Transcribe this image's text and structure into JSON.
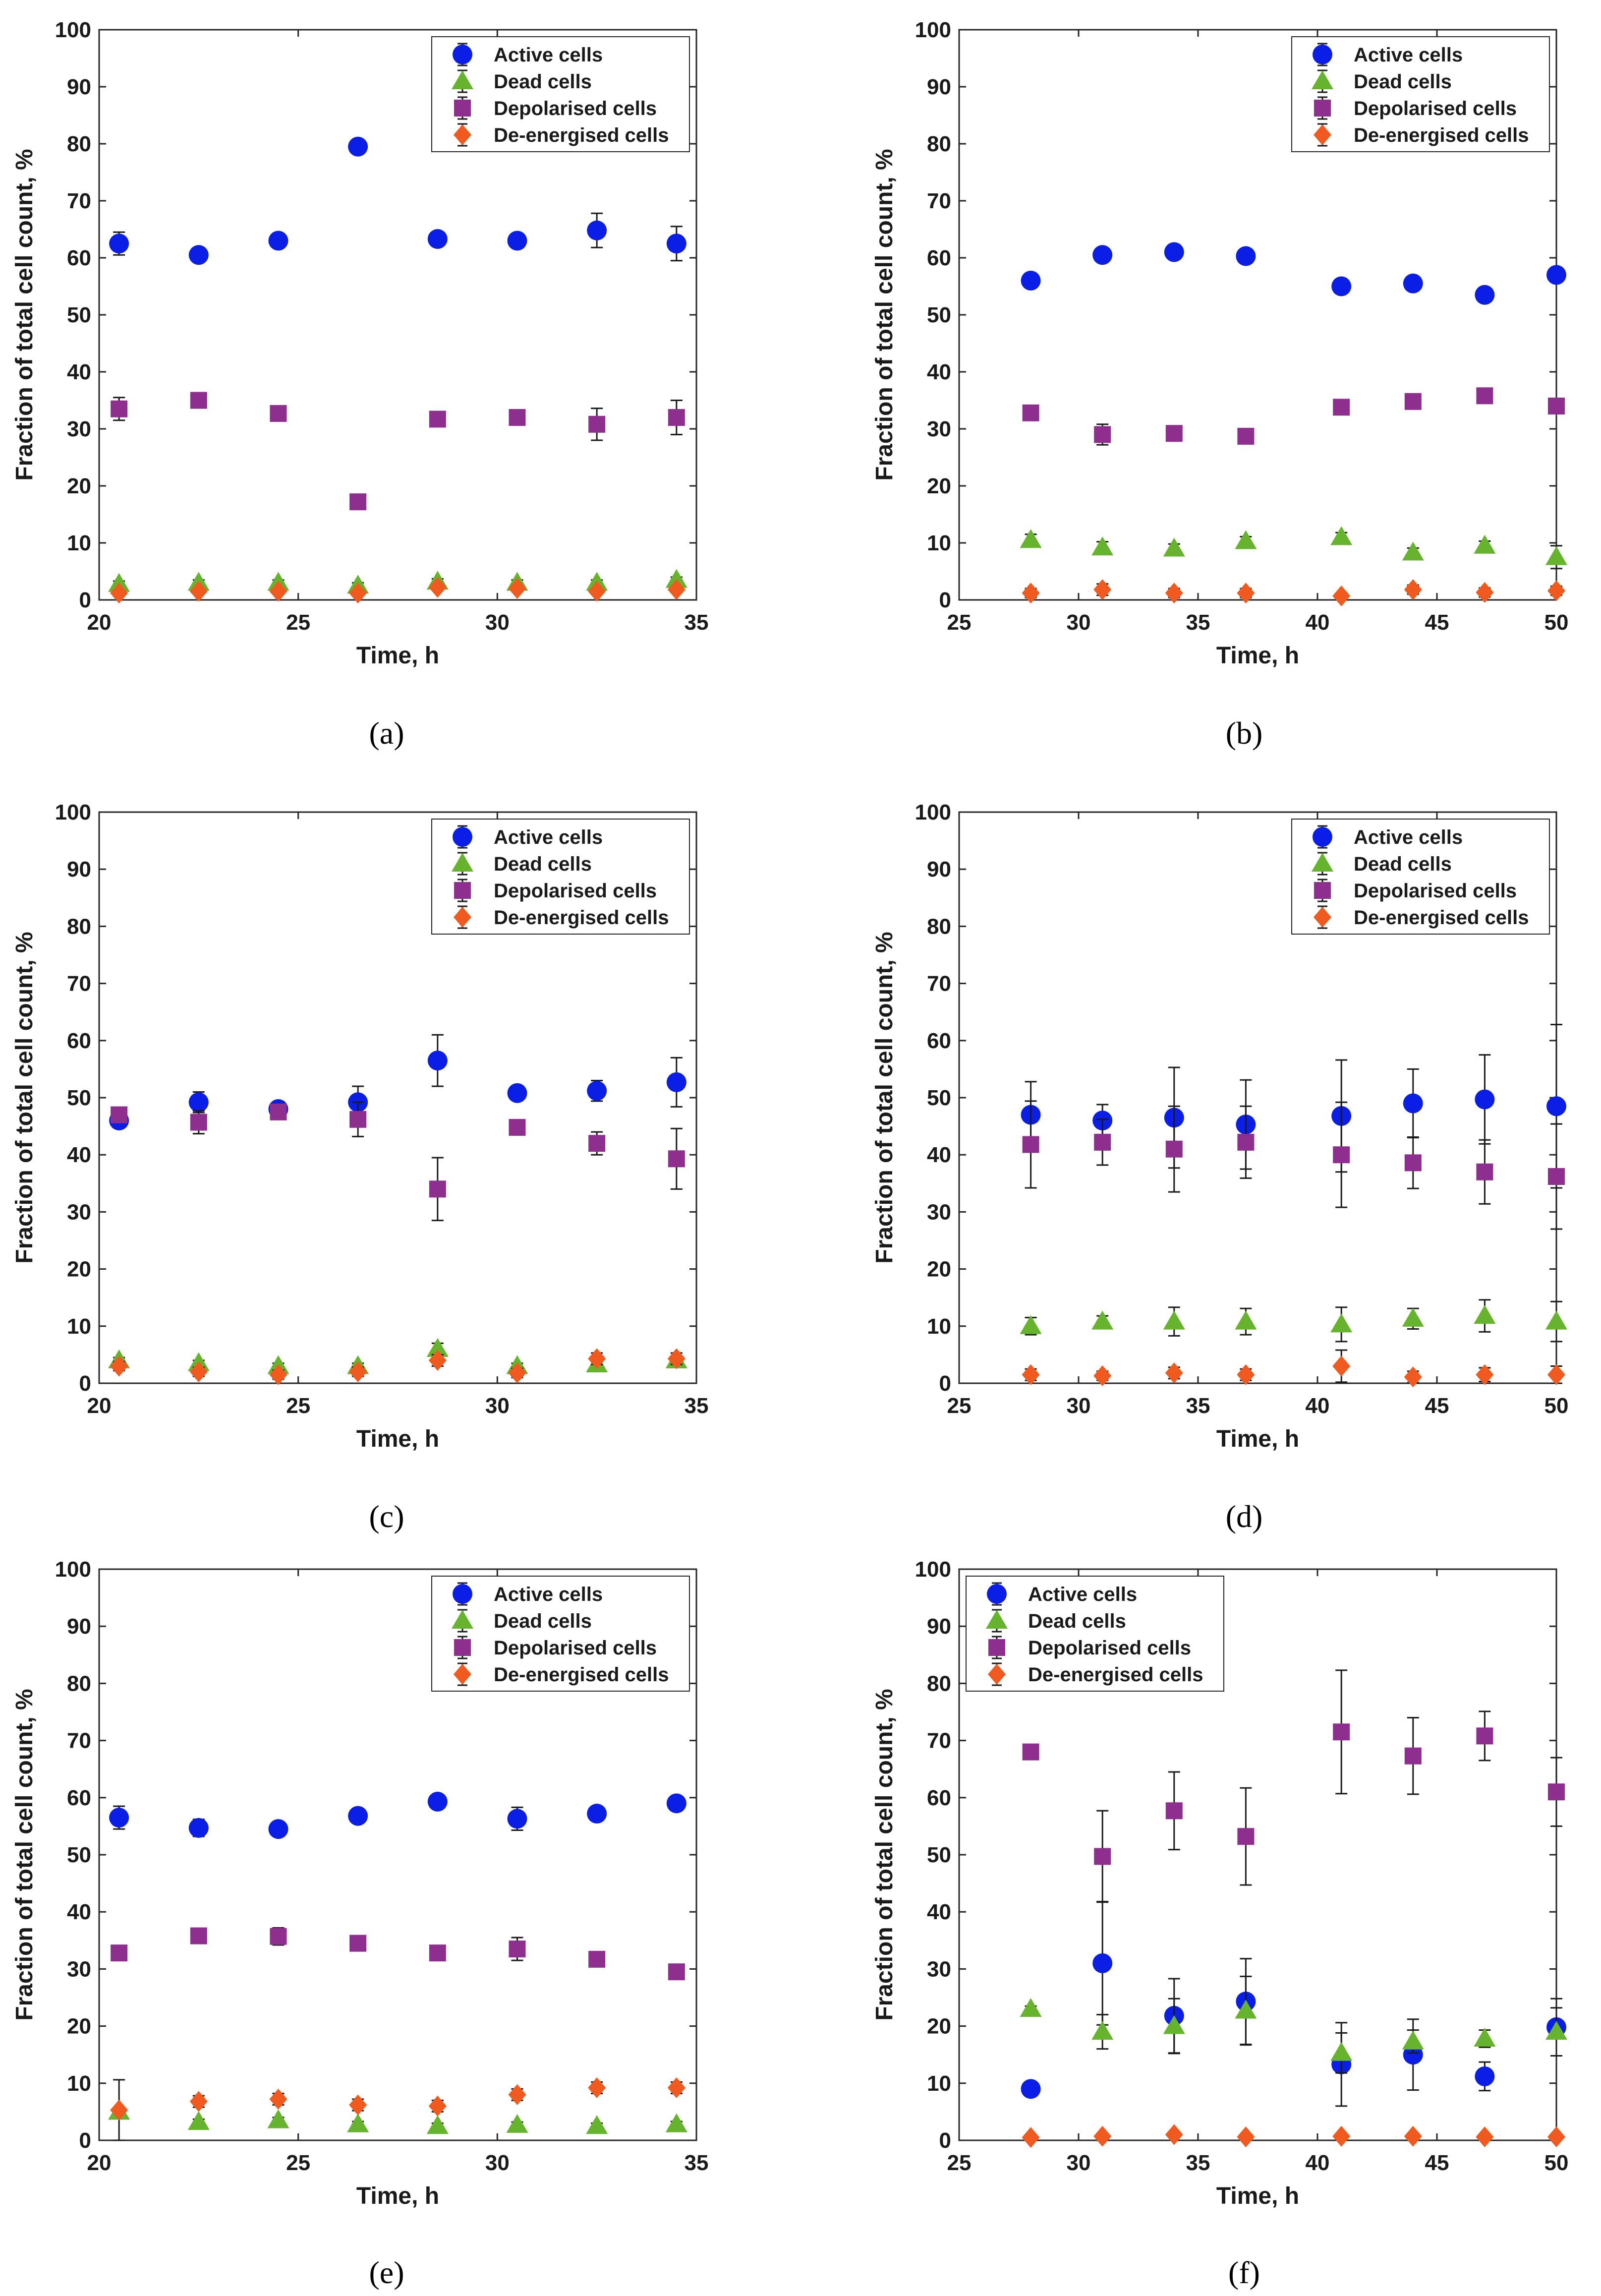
{
  "figure": {
    "captions": [
      "(a)",
      "(b)",
      "(c)",
      "(d)",
      "(e)",
      "(f)"
    ]
  },
  "colors": {
    "active": "#0a1ee6",
    "dead": "#66b32e",
    "depolarised": "#8e2f8f",
    "deenergised": "#f05a1e"
  },
  "chart_data": [
    {
      "type": "scatter",
      "caption": "(a)",
      "xlabel": "Time, h",
      "ylabel": "Fraction of total cell count, %",
      "xlim": [
        20,
        35
      ],
      "ylim": [
        0,
        100
      ],
      "xticks": [
        20,
        25,
        30,
        35
      ],
      "yticks": [
        0,
        10,
        20,
        30,
        40,
        50,
        60,
        70,
        80,
        90,
        100
      ],
      "legend_position": "top-right",
      "x": [
        20.5,
        22.5,
        24.5,
        26.5,
        28.5,
        30.5,
        32.5,
        34.5
      ],
      "series": [
        {
          "name": "Active cells",
          "marker": "circle",
          "values": [
            62.5,
            60.5,
            63,
            79.5,
            63.3,
            63,
            64.8,
            62.5
          ],
          "errors": [
            2,
            0.5,
            0.5,
            0.6,
            1,
            0.6,
            3,
            3
          ]
        },
        {
          "name": "Dead cells",
          "marker": "triangle",
          "values": [
            2.8,
            3,
            3,
            2.5,
            3.2,
            3,
            3,
            3.5
          ],
          "errors": [
            0.5,
            0.5,
            0.5,
            0.5,
            0.5,
            0.5,
            0.5,
            0.5
          ]
        },
        {
          "name": "Depolarised cells",
          "marker": "square",
          "values": [
            33.5,
            35,
            32.7,
            17.2,
            31.7,
            32,
            30.8,
            32
          ],
          "errors": [
            2,
            0.8,
            0.8,
            0.8,
            1,
            0.8,
            2.8,
            3
          ]
        },
        {
          "name": "De-energised cells",
          "marker": "diamond",
          "values": [
            1.2,
            1.5,
            1.5,
            1.2,
            2.2,
            2,
            1.5,
            1.8
          ],
          "errors": [
            0.5,
            0.5,
            0.5,
            0.5,
            0.5,
            0.5,
            0.5,
            0.5
          ]
        }
      ]
    },
    {
      "type": "scatter",
      "caption": "(b)",
      "xlabel": "Time, h",
      "ylabel": "Fraction of total cell count, %",
      "xlim": [
        25,
        50
      ],
      "ylim": [
        0,
        100
      ],
      "xticks": [
        25,
        30,
        35,
        40,
        45,
        50
      ],
      "yticks": [
        0,
        10,
        20,
        30,
        40,
        50,
        60,
        70,
        80,
        90,
        100
      ],
      "legend_position": "top-right",
      "x": [
        28,
        31,
        34,
        37,
        41,
        44,
        47,
        50
      ],
      "series": [
        {
          "name": "Active cells",
          "marker": "circle",
          "values": [
            56,
            60.5,
            61,
            60.3,
            55,
            55.5,
            53.5,
            57
          ],
          "errors": [
            0.5,
            0.5,
            0.5,
            0.5,
            0.5,
            0.5,
            0.5,
            0.5
          ]
        },
        {
          "name": "Dead cells",
          "marker": "triangle",
          "values": [
            10.5,
            9.2,
            9,
            10.3,
            11,
            8.3,
            9.5,
            7.5
          ],
          "errors": [
            1,
            1,
            0.8,
            0.8,
            0.8,
            0.8,
            0.8,
            2
          ]
        },
        {
          "name": "Depolarised cells",
          "marker": "square",
          "values": [
            32.8,
            29,
            29.2,
            28.7,
            33.8,
            34.8,
            35.8,
            34
          ],
          "errors": [
            0.8,
            1.8,
            0.8,
            0.8,
            0.8,
            0.8,
            0.8,
            0.8
          ]
        },
        {
          "name": "De-energised cells",
          "marker": "diamond",
          "values": [
            1.2,
            1.8,
            1.2,
            1.2,
            0.7,
            1.8,
            1.3,
            1.6
          ],
          "errors": [
            0.8,
            1,
            0.8,
            0.8,
            0.5,
            0.8,
            0.8,
            0.8
          ]
        }
      ]
    },
    {
      "type": "scatter",
      "caption": "(c)",
      "xlabel": "Time, h",
      "ylabel": "Fraction of total cell count, %",
      "xlim": [
        20,
        35
      ],
      "ylim": [
        0,
        100
      ],
      "xticks": [
        20,
        25,
        30,
        35
      ],
      "yticks": [
        0,
        10,
        20,
        30,
        40,
        50,
        60,
        70,
        80,
        90,
        100
      ],
      "legend_position": "top-right",
      "x": [
        20.5,
        22.5,
        24.5,
        26.5,
        28.5,
        30.5,
        32.5,
        34.5
      ],
      "series": [
        {
          "name": "Active cells",
          "marker": "circle",
          "values": [
            46,
            49.2,
            48,
            49.2,
            56.5,
            50.8,
            51.2,
            52.7
          ],
          "errors": [
            1,
            1.8,
            0.8,
            2.8,
            4.5,
            0.8,
            1.8,
            4.3
          ]
        },
        {
          "name": "Dead cells",
          "marker": "triangle",
          "values": [
            4,
            3.5,
            3,
            3,
            6,
            3,
            3.3,
            4
          ],
          "errors": [
            0.5,
            0.5,
            0.5,
            0.5,
            1,
            0.5,
            0.5,
            0.5
          ]
        },
        {
          "name": "Depolarised cells",
          "marker": "square",
          "values": [
            47,
            45.7,
            47.5,
            46.2,
            34,
            44.8,
            42,
            39.3
          ],
          "errors": [
            0.8,
            2,
            0.8,
            3,
            5.5,
            0.8,
            2,
            5.3
          ]
        },
        {
          "name": "De-energised cells",
          "marker": "diamond",
          "values": [
            3,
            2,
            1.5,
            2,
            4,
            1.8,
            4.3,
            4.3
          ],
          "errors": [
            0.8,
            0.8,
            0.8,
            0.8,
            1,
            0.8,
            1,
            1
          ]
        }
      ]
    },
    {
      "type": "scatter",
      "caption": "(d)",
      "xlabel": "Time, h",
      "ylabel": "Fraction of total cell count, %",
      "xlim": [
        25,
        50
      ],
      "ylim": [
        0,
        100
      ],
      "xticks": [
        25,
        30,
        35,
        40,
        45,
        50
      ],
      "yticks": [
        0,
        10,
        20,
        30,
        40,
        50,
        60,
        70,
        80,
        90,
        100
      ],
      "legend_position": "top-right",
      "x": [
        28,
        31,
        34,
        37,
        41,
        44,
        47,
        50
      ],
      "series": [
        {
          "name": "Active cells",
          "marker": "circle",
          "values": [
            47,
            46,
            46.5,
            45.3,
            46.8,
            49,
            49.7,
            48.5
          ],
          "errors": [
            5.8,
            2.8,
            8.8,
            7.8,
            9.8,
            6,
            7.8,
            14.3
          ]
        },
        {
          "name": "Dead cells",
          "marker": "triangle",
          "values": [
            10,
            10.8,
            10.8,
            10.8,
            10.3,
            11.3,
            11.8,
            10.8
          ],
          "errors": [
            1.5,
            1,
            2.5,
            2.3,
            3,
            1.8,
            2.8,
            3.5
          ]
        },
        {
          "name": "Depolarised cells",
          "marker": "square",
          "values": [
            41.8,
            42.2,
            41,
            42.2,
            40,
            38.6,
            37,
            36.2
          ],
          "errors": [
            7.6,
            4,
            7.5,
            6.3,
            9.2,
            4.5,
            5.6,
            9.2
          ]
        },
        {
          "name": "De-energised cells",
          "marker": "diamond",
          "values": [
            1.5,
            1.3,
            1.8,
            1.5,
            3,
            1.1,
            1.5,
            1.5
          ],
          "errors": [
            1,
            0.8,
            1,
            1,
            2.8,
            1,
            1.2,
            1.5
          ]
        }
      ]
    },
    {
      "type": "scatter",
      "caption": "(e)",
      "xlabel": "Time, h",
      "ylabel": "Fraction of total cell count, %",
      "xlim": [
        20,
        35
      ],
      "ylim": [
        0,
        100
      ],
      "xticks": [
        20,
        25,
        30,
        35
      ],
      "yticks": [
        0,
        10,
        20,
        30,
        40,
        50,
        60,
        70,
        80,
        90,
        100
      ],
      "legend_position": "top-right",
      "x": [
        20.5,
        22.5,
        24.5,
        26.5,
        28.5,
        30.5,
        32.5,
        34.5
      ],
      "series": [
        {
          "name": "Active cells",
          "marker": "circle",
          "values": [
            56.5,
            54.7,
            54.5,
            56.8,
            59.3,
            56.3,
            57.2,
            59
          ],
          "errors": [
            2,
            1.5,
            0.6,
            0.6,
            0.6,
            2,
            1,
            0.6
          ]
        },
        {
          "name": "Dead cells",
          "marker": "triangle",
          "values": [
            5,
            3.2,
            3.5,
            2.8,
            2.5,
            2.7,
            2.5,
            2.8
          ],
          "errors": [
            0.5,
            0.5,
            0.5,
            0.5,
            0.5,
            0.5,
            0.5,
            0.5
          ]
        },
        {
          "name": "Depolarised cells",
          "marker": "square",
          "values": [
            32.8,
            35.8,
            35.7,
            34.5,
            32.8,
            33.5,
            31.7,
            29.5
          ],
          "errors": [
            0.8,
            1.2,
            1.5,
            0.8,
            0.8,
            2,
            0.8,
            0.6
          ]
        },
        {
          "name": "De-energised cells",
          "marker": "diamond",
          "values": [
            5.3,
            6.8,
            7.2,
            6.2,
            6,
            8,
            9.2,
            9.2
          ],
          "errors": [
            5.3,
            1,
            1,
            1,
            1,
            1,
            1,
            1
          ]
        }
      ]
    },
    {
      "type": "scatter",
      "caption": "(f)",
      "xlabel": "Time, h",
      "ylabel": "Fraction of total cell count, %",
      "xlim": [
        25,
        50
      ],
      "ylim": [
        0,
        100
      ],
      "xticks": [
        25,
        30,
        35,
        40,
        45,
        50
      ],
      "yticks": [
        0,
        10,
        20,
        30,
        40,
        50,
        60,
        70,
        80,
        90,
        100
      ],
      "legend_position": "top-left",
      "x": [
        28,
        31,
        34,
        37,
        41,
        44,
        47,
        50
      ],
      "series": [
        {
          "name": "Active cells",
          "marker": "circle",
          "values": [
            9,
            31,
            21.8,
            24.3,
            13.3,
            15,
            11.2,
            19.8
          ],
          "errors": [
            0.5,
            10.8,
            6.5,
            7.5,
            7.3,
            6.2,
            2.5,
            5
          ]
        },
        {
          "name": "Dead cells",
          "marker": "triangle",
          "values": [
            23,
            19,
            20,
            22.7,
            15.3,
            17.3,
            17.8,
            19
          ],
          "errors": [
            0.5,
            3,
            4.8,
            6,
            3.5,
            2,
            1.5,
            4.2
          ]
        },
        {
          "name": "Depolarised cells",
          "marker": "square",
          "values": [
            68,
            49.7,
            57.7,
            53.2,
            71.5,
            67.3,
            70.8,
            61
          ],
          "errors": [
            0.8,
            8,
            6.8,
            8.5,
            10.8,
            6.7,
            4.3,
            6
          ]
        },
        {
          "name": "De-energised cells",
          "marker": "diamond",
          "values": [
            0.5,
            0.7,
            1,
            0.6,
            0.7,
            0.7,
            0.6,
            0.6
          ],
          "errors": [
            0.5,
            0.5,
            0.5,
            0.5,
            0.5,
            0.5,
            0.5,
            0.5
          ]
        }
      ]
    }
  ]
}
